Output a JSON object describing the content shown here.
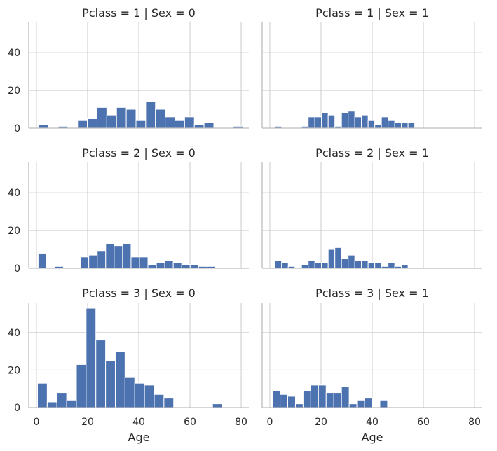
{
  "chart_data": {
    "type": "bar",
    "facets": [
      {
        "title": "Pclass = 1 | Sex = 0",
        "bin_width": 3.8,
        "bins": [
          {
            "start": 0.9,
            "count": 2
          },
          {
            "start": 4.7,
            "count": 0
          },
          {
            "start": 8.5,
            "count": 1
          },
          {
            "start": 12.3,
            "count": 0
          },
          {
            "start": 16.1,
            "count": 4
          },
          {
            "start": 19.9,
            "count": 5
          },
          {
            "start": 23.7,
            "count": 11
          },
          {
            "start": 27.5,
            "count": 7
          },
          {
            "start": 31.3,
            "count": 11
          },
          {
            "start": 35.1,
            "count": 10
          },
          {
            "start": 38.9,
            "count": 4
          },
          {
            "start": 42.7,
            "count": 14
          },
          {
            "start": 46.5,
            "count": 10
          },
          {
            "start": 50.3,
            "count": 6
          },
          {
            "start": 54.1,
            "count": 4
          },
          {
            "start": 57.9,
            "count": 6
          },
          {
            "start": 61.7,
            "count": 2
          },
          {
            "start": 65.5,
            "count": 3
          },
          {
            "start": 69.3,
            "count": 0
          },
          {
            "start": 73.1,
            "count": 0
          },
          {
            "start": 76.9,
            "count": 1
          }
        ]
      },
      {
        "title": "Pclass = 1 | Sex = 1",
        "bin_width": 2.6,
        "bins": [
          {
            "start": 2.0,
            "count": 1
          },
          {
            "start": 4.6,
            "count": 0
          },
          {
            "start": 7.2,
            "count": 0
          },
          {
            "start": 9.8,
            "count": 0
          },
          {
            "start": 12.4,
            "count": 1
          },
          {
            "start": 15.0,
            "count": 6
          },
          {
            "start": 17.6,
            "count": 6
          },
          {
            "start": 20.2,
            "count": 8
          },
          {
            "start": 22.8,
            "count": 7
          },
          {
            "start": 25.4,
            "count": 1
          },
          {
            "start": 28.0,
            "count": 8
          },
          {
            "start": 30.6,
            "count": 9
          },
          {
            "start": 33.2,
            "count": 6
          },
          {
            "start": 35.8,
            "count": 7
          },
          {
            "start": 38.4,
            "count": 4
          },
          {
            "start": 41.0,
            "count": 2
          },
          {
            "start": 43.6,
            "count": 6
          },
          {
            "start": 46.2,
            "count": 4
          },
          {
            "start": 48.8,
            "count": 3
          },
          {
            "start": 51.4,
            "count": 3
          },
          {
            "start": 54.0,
            "count": 3
          }
        ]
      },
      {
        "title": "Pclass = 2 | Sex = 0",
        "bin_width": 3.3,
        "bins": [
          {
            "start": 0.67,
            "count": 8
          },
          {
            "start": 3.97,
            "count": 0
          },
          {
            "start": 7.27,
            "count": 1
          },
          {
            "start": 10.57,
            "count": 0
          },
          {
            "start": 13.87,
            "count": 0
          },
          {
            "start": 17.17,
            "count": 6
          },
          {
            "start": 20.47,
            "count": 7
          },
          {
            "start": 23.77,
            "count": 9
          },
          {
            "start": 27.07,
            "count": 13
          },
          {
            "start": 30.37,
            "count": 12
          },
          {
            "start": 33.67,
            "count": 13
          },
          {
            "start": 36.97,
            "count": 6
          },
          {
            "start": 40.27,
            "count": 6
          },
          {
            "start": 43.57,
            "count": 2
          },
          {
            "start": 46.87,
            "count": 3
          },
          {
            "start": 50.17,
            "count": 4
          },
          {
            "start": 53.47,
            "count": 3
          },
          {
            "start": 56.77,
            "count": 2
          },
          {
            "start": 60.07,
            "count": 2
          },
          {
            "start": 63.37,
            "count": 1
          },
          {
            "start": 66.67,
            "count": 1
          }
        ]
      },
      {
        "title": "Pclass = 2 | Sex = 1",
        "bin_width": 2.6,
        "bins": [
          {
            "start": 2.0,
            "count": 4
          },
          {
            "start": 4.6,
            "count": 3
          },
          {
            "start": 7.2,
            "count": 1
          },
          {
            "start": 9.8,
            "count": 0
          },
          {
            "start": 12.4,
            "count": 2
          },
          {
            "start": 15.0,
            "count": 4
          },
          {
            "start": 17.6,
            "count": 3
          },
          {
            "start": 20.2,
            "count": 3
          },
          {
            "start": 22.8,
            "count": 10
          },
          {
            "start": 25.4,
            "count": 11
          },
          {
            "start": 28.0,
            "count": 5
          },
          {
            "start": 30.6,
            "count": 7
          },
          {
            "start": 33.2,
            "count": 4
          },
          {
            "start": 35.8,
            "count": 4
          },
          {
            "start": 38.4,
            "count": 3
          },
          {
            "start": 41.0,
            "count": 3
          },
          {
            "start": 43.6,
            "count": 1
          },
          {
            "start": 46.2,
            "count": 3
          },
          {
            "start": 48.8,
            "count": 1
          },
          {
            "start": 51.4,
            "count": 2
          },
          {
            "start": 54.0,
            "count": 0
          }
        ]
      },
      {
        "title": "Pclass = 3 | Sex = 0",
        "bin_width": 3.8,
        "bins": [
          {
            "start": 0.42,
            "count": 13
          },
          {
            "start": 4.22,
            "count": 3
          },
          {
            "start": 8.02,
            "count": 8
          },
          {
            "start": 11.82,
            "count": 4
          },
          {
            "start": 15.62,
            "count": 23
          },
          {
            "start": 19.42,
            "count": 53
          },
          {
            "start": 23.22,
            "count": 36
          },
          {
            "start": 27.02,
            "count": 25
          },
          {
            "start": 30.82,
            "count": 30
          },
          {
            "start": 34.62,
            "count": 16
          },
          {
            "start": 38.42,
            "count": 13
          },
          {
            "start": 42.22,
            "count": 12
          },
          {
            "start": 46.02,
            "count": 7
          },
          {
            "start": 49.82,
            "count": 5
          },
          {
            "start": 53.62,
            "count": 0
          },
          {
            "start": 57.42,
            "count": 0
          },
          {
            "start": 61.22,
            "count": 0
          },
          {
            "start": 65.02,
            "count": 0
          },
          {
            "start": 68.82,
            "count": 2
          },
          {
            "start": 72.62,
            "count": 0
          }
        ]
      },
      {
        "title": "Pclass = 3 | Sex = 1",
        "bin_width": 3.0,
        "bins": [
          {
            "start": 1.0,
            "count": 9
          },
          {
            "start": 4.0,
            "count": 7
          },
          {
            "start": 7.0,
            "count": 6
          },
          {
            "start": 10.0,
            "count": 2
          },
          {
            "start": 13.0,
            "count": 9
          },
          {
            "start": 16.0,
            "count": 12
          },
          {
            "start": 19.0,
            "count": 12
          },
          {
            "start": 22.0,
            "count": 8
          },
          {
            "start": 25.0,
            "count": 8
          },
          {
            "start": 28.0,
            "count": 11
          },
          {
            "start": 31.0,
            "count": 2
          },
          {
            "start": 34.0,
            "count": 4
          },
          {
            "start": 37.0,
            "count": 5
          },
          {
            "start": 40.0,
            "count": 0
          },
          {
            "start": 43.0,
            "count": 4
          }
        ]
      }
    ],
    "xlabel": "Age",
    "ylabel": "",
    "xlim": [
      -3,
      83
    ],
    "ylim": [
      0,
      56
    ],
    "xticks": [
      0,
      20,
      40,
      60,
      80
    ],
    "yticks": [
      0,
      20,
      40
    ],
    "grid": true,
    "bar_color": "#4c72b0"
  }
}
